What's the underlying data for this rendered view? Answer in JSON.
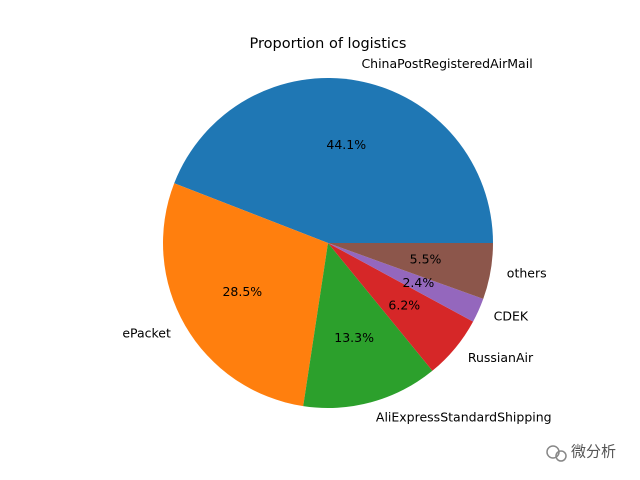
{
  "chart_data": {
    "type": "pie",
    "title": "Proportion of logistics",
    "categories": [
      "ChinaPostRegisteredAirMail",
      "ePacket",
      "AliExpressStandardShipping",
      "RussianAir",
      "CDEK",
      "others"
    ],
    "values": [
      44.1,
      28.5,
      13.3,
      6.2,
      2.4,
      5.5
    ],
    "value_labels": [
      "44.1%",
      "28.5%",
      "13.3%",
      "6.2%",
      "2.4%",
      "5.5%"
    ],
    "colors": [
      "#1f77b4",
      "#ff7f0e",
      "#2ca02c",
      "#d62728",
      "#9467bd",
      "#8c564b"
    ]
  },
  "watermark": "微分析"
}
